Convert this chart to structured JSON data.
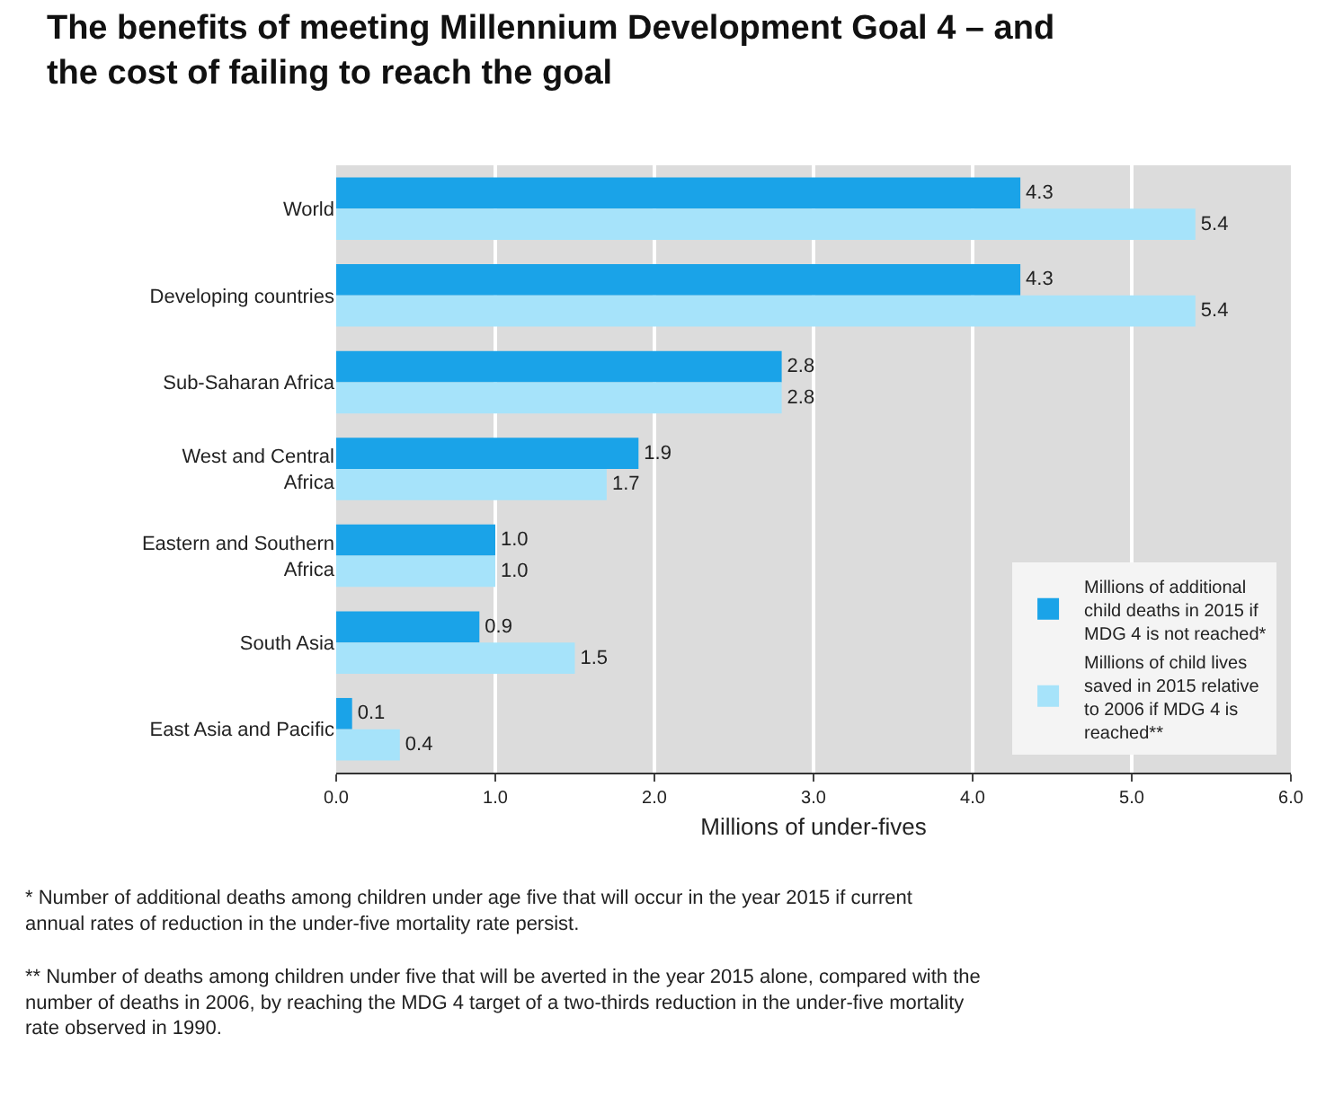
{
  "chart_data": {
    "type": "bar",
    "orientation": "horizontal",
    "title": "The benefits of meeting Millennium Development Goal 4 – and the cost of failing to reach the goal",
    "xlabel": "Millions of under-fives",
    "categories": [
      "World",
      "Developing countries",
      "Sub-Saharan Africa",
      "West and Central Africa",
      "Eastern and Southern Africa",
      "South Asia",
      "East Asia and Pacific"
    ],
    "series": [
      {
        "name": "Millions of additional child deaths in 2015 if MDG 4 is not reached*",
        "color": "#1aa3e8",
        "values": [
          4.3,
          4.3,
          2.8,
          1.9,
          1.0,
          0.9,
          0.1
        ],
        "value_labels": [
          "4.3",
          "4.3",
          "2.8",
          "1.9",
          "1.0",
          "0.9",
          "0.1"
        ]
      },
      {
        "name": "Millions of child lives saved in 2015 relative to 2006 if MDG 4 is reached**",
        "color": "#a6e3fa",
        "values": [
          5.4,
          5.4,
          2.8,
          1.7,
          1.0,
          1.5,
          0.4
        ],
        "value_labels": [
          "5.4",
          "5.4",
          "2.8",
          "1.7",
          "1.0",
          "1.5",
          "0.4"
        ]
      }
    ],
    "xlim": [
      0,
      6
    ],
    "xticks": [
      {
        "value": 0,
        "label": "0.0"
      },
      {
        "value": 1,
        "label": "1.0"
      },
      {
        "value": 2,
        "label": "2.0"
      },
      {
        "value": 3,
        "label": "3.0"
      },
      {
        "value": 4,
        "label": "4.0"
      },
      {
        "value": 5,
        "label": "5.0"
      },
      {
        "value": 6,
        "label": "6.0"
      }
    ],
    "grid": "x",
    "legend": "bottom right",
    "annotations": [
      "* Number of additional deaths among children under age five that will occur in the year 2015 if current annual rates of reduction in the under-five mortality rate persist.",
      "** Number of deaths among children under five that will be averted in the year 2015 alone, compared with the number of deaths in 2006, by reaching the MDG 4 target of a two-thirds reduction in the under-five mortality rate observed in 1990."
    ]
  }
}
